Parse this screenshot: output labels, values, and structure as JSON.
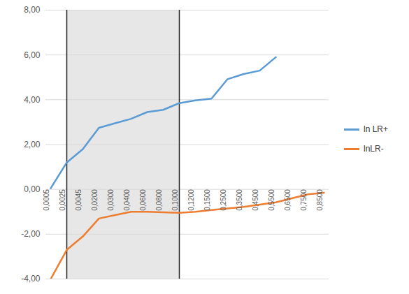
{
  "chart_data": {
    "type": "line",
    "categories": [
      "0,0005",
      "0,0025",
      "0,0045",
      "0,0200",
      "0,0300",
      "0,0400",
      "0,0600",
      "0,0800",
      "0,1000",
      "0,1200",
      "0,1500",
      "0,2500",
      "0,3500",
      "0,4500",
      "0,5500",
      "0,6500",
      "0,7500",
      "0,8500"
    ],
    "series": [
      {
        "name": "ln LR+",
        "color": "#5b9bd5",
        "values": [
          0.05,
          1.2,
          1.8,
          2.75,
          2.95,
          3.15,
          3.45,
          3.55,
          3.85,
          3.97,
          4.05,
          4.92,
          5.15,
          5.3,
          5.9,
          null,
          null,
          null
        ]
      },
      {
        "name": "lnLR-",
        "color": "#ed7d31",
        "values": [
          -4.0,
          -2.7,
          -2.1,
          -1.3,
          -1.15,
          -1.0,
          -1.0,
          -1.02,
          -1.05,
          -1.0,
          -0.92,
          -0.85,
          -0.78,
          -0.68,
          -0.58,
          -0.4,
          -0.22,
          -0.15
        ]
      }
    ],
    "highlight": {
      "from": "0,0025",
      "to": "0,1000"
    },
    "ylim": [
      -4,
      8
    ],
    "yticks": [
      {
        "value": -4,
        "label": "-4,00"
      },
      {
        "value": -2,
        "label": "-2,00"
      },
      {
        "value": 0,
        "label": "0,00"
      },
      {
        "value": 2,
        "label": "2,00"
      },
      {
        "value": 4,
        "label": "4,00"
      },
      {
        "value": 6,
        "label": "6,00"
      },
      {
        "value": 8,
        "label": "8,00"
      }
    ],
    "grid": true,
    "legend": "right"
  }
}
